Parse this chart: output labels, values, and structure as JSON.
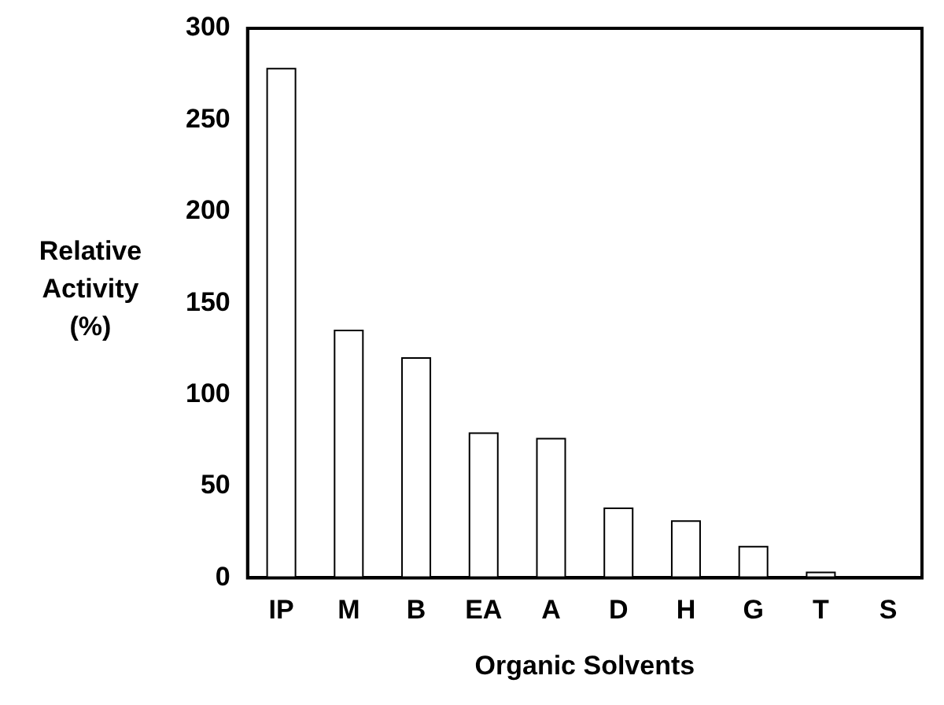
{
  "chart_data": {
    "type": "bar",
    "xlabel": "Organic Solvents",
    "ylabel": "Relative Activity (%)",
    "categories": [
      "IP",
      "M",
      "B",
      "EA",
      "A",
      "D",
      "H",
      "G",
      "T",
      "S"
    ],
    "values": [
      278,
      135,
      120,
      79,
      76,
      38,
      31,
      17,
      3,
      0
    ],
    "color": "#ffffff",
    "ylim": [
      0,
      300
    ],
    "yticks": [
      0,
      50,
      100,
      150,
      200,
      250,
      300
    ],
    "grid": false,
    "legend": false
  }
}
